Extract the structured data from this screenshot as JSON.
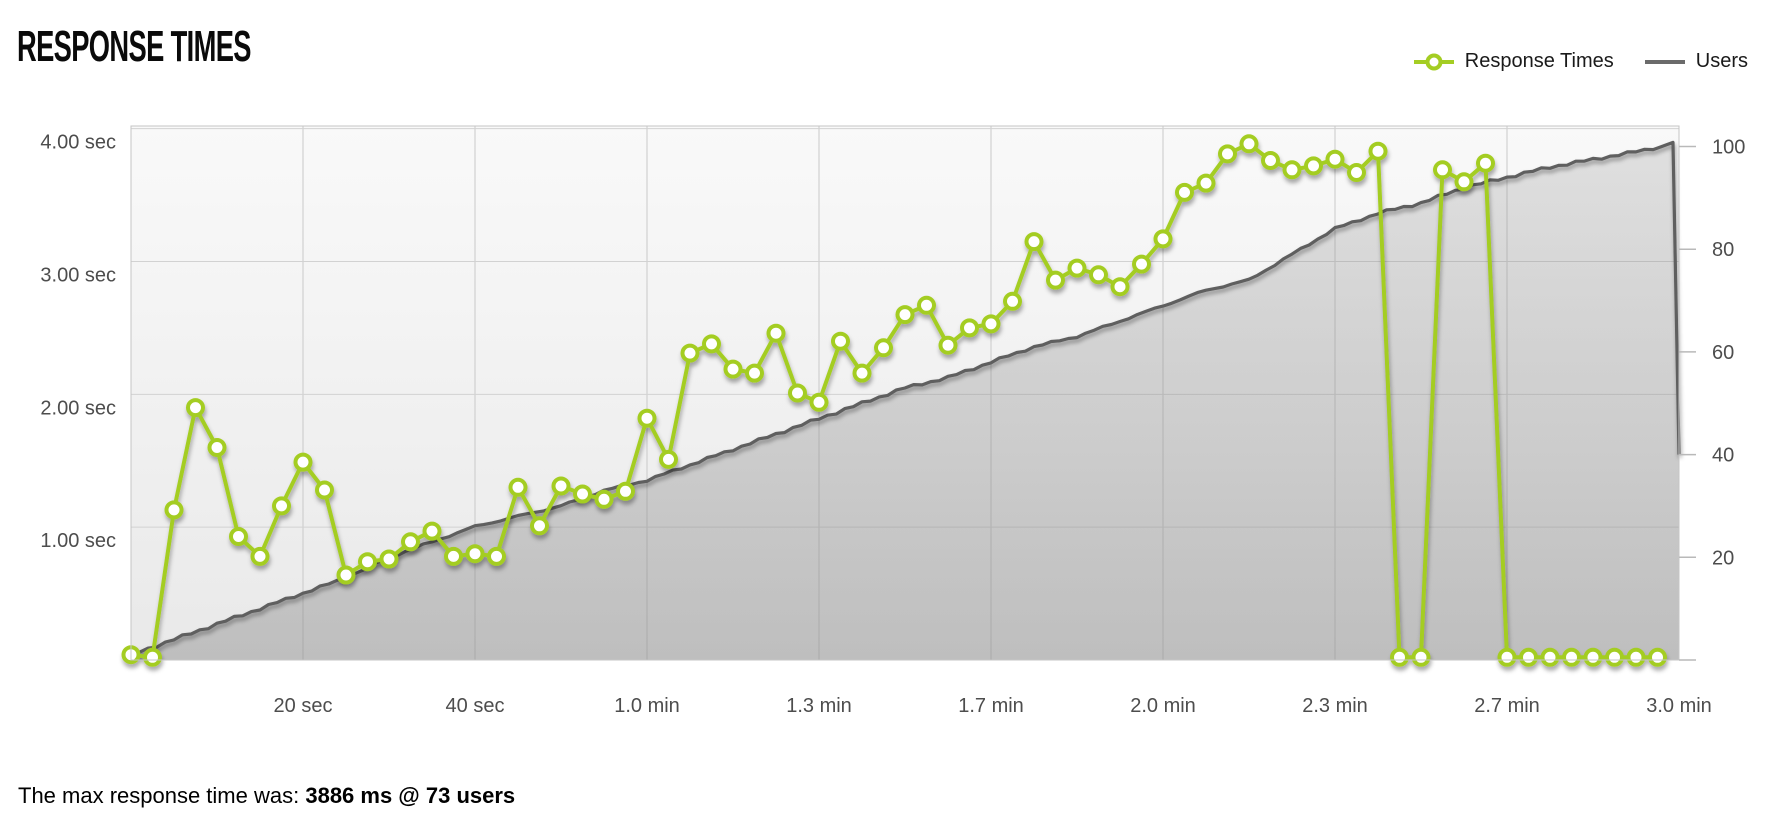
{
  "header": {
    "title": "RESPONSE TIMES"
  },
  "legend": [
    {
      "id": "response-times",
      "label": "Response Times",
      "color": "#a4cd23",
      "swatch": "line-circle"
    },
    {
      "id": "users",
      "label": "Users",
      "color": "#6b6b6b",
      "swatch": "line"
    }
  ],
  "footer": {
    "prefix": "The max response time was: ",
    "value": "3886 ms @ 73 users"
  },
  "colors": {
    "accent_green": "#a4cd23",
    "users_gray": "#5f5f5f",
    "grid": "#cccccc",
    "axis_text": "#4d4d4d",
    "plot_bg_top": "#f9f9f9",
    "plot_bg_bottom": "#e9e9e9"
  },
  "chart_data": {
    "type": "line",
    "title": "RESPONSE TIMES",
    "legend_position": "top-right",
    "grid": true,
    "x_axis": {
      "unit": "time",
      "range_seconds": [
        0,
        180
      ],
      "tick_seconds": [
        20,
        40,
        60,
        80,
        100,
        120,
        140,
        160,
        180
      ],
      "tick_labels": [
        "20 sec",
        "40 sec",
        "1.0 min",
        "1.3 min",
        "1.7 min",
        "2.0 min",
        "2.3 min",
        "2.7 min",
        "3.0 min"
      ]
    },
    "y_left": {
      "unit": "seconds",
      "range_sec": [
        0,
        4.02
      ],
      "tick_values_sec": [
        1,
        2,
        3,
        4
      ],
      "tick_labels": [
        "1.00 sec",
        "2.00 sec",
        "3.00 sec",
        "4.00 sec"
      ]
    },
    "y_right": {
      "unit": "users",
      "range": [
        0,
        104
      ],
      "tick_values": [
        20,
        40,
        60,
        80,
        100
      ],
      "tick_labels": [
        "20",
        "40",
        "60",
        "80",
        "100"
      ]
    },
    "series": [
      {
        "name": "Response Times",
        "axis": "left",
        "style": "line-markers",
        "color": "#a4cd23",
        "points_t_ms": [
          [
            0,
            40
          ],
          [
            2.5,
            20
          ],
          [
            5,
            1130
          ],
          [
            7.5,
            1900
          ],
          [
            10,
            1600
          ],
          [
            12.5,
            930
          ],
          [
            15,
            780
          ],
          [
            17.5,
            1160
          ],
          [
            20,
            1490
          ],
          [
            22.5,
            1280
          ],
          [
            25,
            640
          ],
          [
            27.5,
            740
          ],
          [
            30,
            760
          ],
          [
            32.5,
            890
          ],
          [
            35,
            970
          ],
          [
            37.5,
            780
          ],
          [
            40,
            800
          ],
          [
            42.5,
            780
          ],
          [
            45,
            1300
          ],
          [
            47.5,
            1010
          ],
          [
            50,
            1310
          ],
          [
            52.5,
            1250
          ],
          [
            55,
            1210
          ],
          [
            57.5,
            1270
          ],
          [
            60,
            1820
          ],
          [
            62.5,
            1510
          ],
          [
            65,
            2310
          ],
          [
            67.5,
            2380
          ],
          [
            70,
            2190
          ],
          [
            72.5,
            2160
          ],
          [
            75,
            2460
          ],
          [
            77.5,
            2010
          ],
          [
            80,
            1940
          ],
          [
            82.5,
            2400
          ],
          [
            85,
            2160
          ],
          [
            87.5,
            2350
          ],
          [
            90,
            2600
          ],
          [
            92.5,
            2670
          ],
          [
            95,
            2370
          ],
          [
            97.5,
            2500
          ],
          [
            100,
            2530
          ],
          [
            102.5,
            2700
          ],
          [
            105,
            3150
          ],
          [
            107.5,
            2860
          ],
          [
            110,
            2950
          ],
          [
            112.5,
            2900
          ],
          [
            115,
            2810
          ],
          [
            117.5,
            2980
          ],
          [
            120,
            3170
          ],
          [
            122.5,
            3520
          ],
          [
            125,
            3590
          ],
          [
            127.5,
            3810
          ],
          [
            130,
            3886
          ],
          [
            132.5,
            3760
          ],
          [
            135,
            3690
          ],
          [
            137.5,
            3720
          ],
          [
            140,
            3770
          ],
          [
            142.5,
            3670
          ],
          [
            145,
            3830
          ],
          [
            147.5,
            20
          ],
          [
            150,
            20
          ],
          [
            152.5,
            3690
          ],
          [
            155,
            3600
          ],
          [
            157.5,
            3740
          ],
          [
            160,
            20
          ],
          [
            162.5,
            20
          ],
          [
            165,
            20
          ],
          [
            167.5,
            20
          ],
          [
            170,
            20
          ],
          [
            172.5,
            20
          ],
          [
            175,
            20
          ],
          [
            177.5,
            20
          ]
        ]
      },
      {
        "name": "Users",
        "axis": "right",
        "style": "area-line",
        "color": "#5f5f5f",
        "points_t_users": [
          [
            0,
            1
          ],
          [
            5,
            4
          ],
          [
            10,
            7
          ],
          [
            15,
            10
          ],
          [
            20,
            13
          ],
          [
            25,
            16
          ],
          [
            30,
            20
          ],
          [
            35,
            23
          ],
          [
            40,
            26
          ],
          [
            45,
            28
          ],
          [
            50,
            30
          ],
          [
            55,
            33
          ],
          [
            60,
            35
          ],
          [
            65,
            38
          ],
          [
            70,
            41
          ],
          [
            75,
            44
          ],
          [
            80,
            47
          ],
          [
            85,
            50
          ],
          [
            90,
            53
          ],
          [
            95,
            55
          ],
          [
            100,
            58
          ],
          [
            105,
            61
          ],
          [
            110,
            63
          ],
          [
            115,
            66
          ],
          [
            120,
            69
          ],
          [
            125,
            72
          ],
          [
            130,
            74
          ],
          [
            135,
            79
          ],
          [
            140,
            84
          ],
          [
            145,
            87
          ],
          [
            150,
            89
          ],
          [
            155,
            92
          ],
          [
            160,
            94
          ],
          [
            165,
            96
          ],
          [
            170,
            97.5
          ],
          [
            175,
            99
          ],
          [
            178,
            100
          ],
          [
            179.3,
            100.8
          ],
          [
            180,
            40
          ]
        ]
      }
    ],
    "annotation": "The max response time was: 3886 ms @ 73 users"
  }
}
